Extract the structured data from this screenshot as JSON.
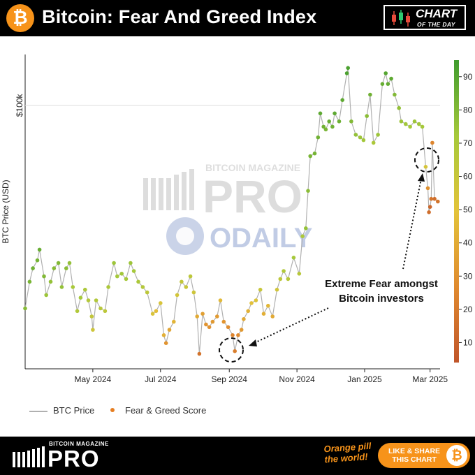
{
  "header": {
    "logo_glyph": "₿",
    "title": "Bitcoin: Fear And Greed Index",
    "badge_main": "CHART",
    "badge_sub": "OF THE DAY"
  },
  "chart_data": {
    "type": "scatter",
    "title": "Bitcoin: Fear And Greed Index",
    "ylabel": "BTC Price (USD)",
    "y_tick": "$100k",
    "xticks": [
      "May 2024",
      "Jul 2024",
      "Sep 2024",
      "Nov 2024",
      "Jan 2025",
      "Mar 2025"
    ],
    "colorbar_ticks": [
      10,
      20,
      30,
      40,
      50,
      60,
      70,
      80,
      90
    ],
    "colorbar_range": [
      4,
      95
    ],
    "colors": {
      "extreme_fear": "#c0552a",
      "fear": "#e08a2e",
      "neutral": "#e3c33a",
      "greed": "#a6c93a",
      "extreme_greed": "#3f9b2e",
      "price_line": "#b0b0b0"
    },
    "series": [
      {
        "name": "BTC Price",
        "type": "line"
      },
      {
        "name": "Fear & Greed Score",
        "type": "scatter"
      }
    ],
    "ylim_usd": [
      52000,
      109000
    ],
    "xlim": [
      "2024-03-01",
      "2025-03-10"
    ],
    "points": [
      {
        "date": "2024-03-01",
        "price": 62000,
        "score": 79
      },
      {
        "date": "2024-03-05",
        "price": 67000,
        "score": 82
      },
      {
        "date": "2024-03-08",
        "price": 69500,
        "score": 84
      },
      {
        "date": "2024-03-12",
        "price": 71000,
        "score": 83
      },
      {
        "date": "2024-03-14",
        "price": 73000,
        "score": 86
      },
      {
        "date": "2024-03-18",
        "price": 68000,
        "score": 80
      },
      {
        "date": "2024-03-20",
        "price": 64500,
        "score": 74
      },
      {
        "date": "2024-03-24",
        "price": 67000,
        "score": 76
      },
      {
        "date": "2024-03-27",
        "price": 69500,
        "score": 79
      },
      {
        "date": "2024-03-31",
        "price": 70500,
        "score": 80
      },
      {
        "date": "2024-04-03",
        "price": 66000,
        "score": 76
      },
      {
        "date": "2024-04-07",
        "price": 69500,
        "score": 78
      },
      {
        "date": "2024-04-10",
        "price": 70500,
        "score": 76
      },
      {
        "date": "2024-04-13",
        "price": 66000,
        "score": 71
      },
      {
        "date": "2024-04-17",
        "price": 61500,
        "score": 68
      },
      {
        "date": "2024-04-20",
        "price": 64000,
        "score": 72
      },
      {
        "date": "2024-04-24",
        "price": 65500,
        "score": 70
      },
      {
        "date": "2024-04-27",
        "price": 63500,
        "score": 67
      },
      {
        "date": "2024-04-30",
        "price": 60500,
        "score": 62
      },
      {
        "date": "2024-05-01",
        "price": 58000,
        "score": 58
      },
      {
        "date": "2024-05-04",
        "price": 63500,
        "score": 68
      },
      {
        "date": "2024-05-08",
        "price": 62000,
        "score": 66
      },
      {
        "date": "2024-05-12",
        "price": 61500,
        "score": 64
      },
      {
        "date": "2024-05-15",
        "price": 66000,
        "score": 70
      },
      {
        "date": "2024-05-20",
        "price": 70500,
        "score": 74
      },
      {
        "date": "2024-05-23",
        "price": 68000,
        "score": 72
      },
      {
        "date": "2024-05-27",
        "price": 68500,
        "score": 73
      },
      {
        "date": "2024-05-31",
        "price": 67500,
        "score": 72
      },
      {
        "date": "2024-06-04",
        "price": 70500,
        "score": 74
      },
      {
        "date": "2024-06-07",
        "price": 69000,
        "score": 72
      },
      {
        "date": "2024-06-11",
        "price": 67000,
        "score": 70
      },
      {
        "date": "2024-06-15",
        "price": 66000,
        "score": 67
      },
      {
        "date": "2024-06-19",
        "price": 65000,
        "score": 64
      },
      {
        "date": "2024-06-24",
        "price": 61000,
        "score": 54
      },
      {
        "date": "2024-06-27",
        "price": 61500,
        "score": 48
      },
      {
        "date": "2024-07-01",
        "price": 63000,
        "score": 54
      },
      {
        "date": "2024-07-04",
        "price": 57000,
        "score": 42
      },
      {
        "date": "2024-07-06",
        "price": 55500,
        "score": 31
      },
      {
        "date": "2024-07-09",
        "price": 58000,
        "score": 38
      },
      {
        "date": "2024-07-13",
        "price": 59500,
        "score": 44
      },
      {
        "date": "2024-07-16",
        "price": 64500,
        "score": 56
      },
      {
        "date": "2024-07-20",
        "price": 67000,
        "score": 62
      },
      {
        "date": "2024-07-24",
        "price": 66000,
        "score": 60
      },
      {
        "date": "2024-07-28",
        "price": 68000,
        "score": 64
      },
      {
        "date": "2024-07-31",
        "price": 65000,
        "score": 58
      },
      {
        "date": "2024-08-03",
        "price": 60500,
        "score": 40
      },
      {
        "date": "2024-08-05",
        "price": 53500,
        "score": 17
      },
      {
        "date": "2024-08-08",
        "price": 61000,
        "score": 36
      },
      {
        "date": "2024-08-11",
        "price": 59000,
        "score": 31
      },
      {
        "date": "2024-08-14",
        "price": 58500,
        "score": 30
      },
      {
        "date": "2024-08-17",
        "price": 59500,
        "score": 33
      },
      {
        "date": "2024-08-21",
        "price": 60500,
        "score": 34
      },
      {
        "date": "2024-08-24",
        "price": 63500,
        "score": 46
      },
      {
        "date": "2024-08-27",
        "price": 59500,
        "score": 31
      },
      {
        "date": "2024-08-31",
        "price": 58500,
        "score": 28
      },
      {
        "date": "2024-09-04",
        "price": 57000,
        "score": 24
      },
      {
        "date": "2024-09-06",
        "price": 54000,
        "score": 22
      },
      {
        "date": "2024-09-09",
        "price": 57000,
        "score": 27
      },
      {
        "date": "2024-09-12",
        "price": 58000,
        "score": 33
      },
      {
        "date": "2024-09-14",
        "price": 60000,
        "score": 40
      },
      {
        "date": "2024-09-18",
        "price": 61500,
        "score": 43
      },
      {
        "date": "2024-09-21",
        "price": 63000,
        "score": 49
      },
      {
        "date": "2024-09-25",
        "price": 63500,
        "score": 52
      },
      {
        "date": "2024-09-29",
        "price": 65500,
        "score": 60
      },
      {
        "date": "2024-10-02",
        "price": 61000,
        "score": 42
      },
      {
        "date": "2024-10-06",
        "price": 62500,
        "score": 45
      },
      {
        "date": "2024-10-10",
        "price": 60500,
        "score": 40
      },
      {
        "date": "2024-10-14",
        "price": 65500,
        "score": 57
      },
      {
        "date": "2024-10-17",
        "price": 67500,
        "score": 64
      },
      {
        "date": "2024-10-20",
        "price": 69000,
        "score": 68
      },
      {
        "date": "2024-10-24",
        "price": 67500,
        "score": 66
      },
      {
        "date": "2024-10-29",
        "price": 71500,
        "score": 72
      },
      {
        "date": "2024-11-03",
        "price": 68500,
        "score": 66
      },
      {
        "date": "2024-11-06",
        "price": 75500,
        "score": 70
      },
      {
        "date": "2024-11-09",
        "price": 77000,
        "score": 76
      },
      {
        "date": "2024-11-11",
        "price": 84000,
        "score": 78
      },
      {
        "date": "2024-11-13",
        "price": 90500,
        "score": 82
      },
      {
        "date": "2024-11-17",
        "price": 91000,
        "score": 83
      },
      {
        "date": "2024-11-20",
        "price": 94000,
        "score": 84
      },
      {
        "date": "2024-11-22",
        "price": 98500,
        "score": 88
      },
      {
        "date": "2024-11-25",
        "price": 96000,
        "score": 84
      },
      {
        "date": "2024-11-27",
        "price": 95500,
        "score": 82
      },
      {
        "date": "2024-11-30",
        "price": 97000,
        "score": 86
      },
      {
        "date": "2024-12-03",
        "price": 96000,
        "score": 84
      },
      {
        "date": "2024-12-05",
        "price": 98500,
        "score": 88
      },
      {
        "date": "2024-12-09",
        "price": 97000,
        "score": 85
      },
      {
        "date": "2024-12-12",
        "price": 101000,
        "score": 88
      },
      {
        "date": "2024-12-16",
        "price": 106000,
        "score": 92
      },
      {
        "date": "2024-12-17",
        "price": 107000,
        "score": 92
      },
      {
        "date": "2024-12-20",
        "price": 97000,
        "score": 80
      },
      {
        "date": "2024-12-24",
        "price": 94500,
        "score": 76
      },
      {
        "date": "2024-12-28",
        "price": 94000,
        "score": 74
      },
      {
        "date": "2024-12-31",
        "price": 93500,
        "score": 73
      },
      {
        "date": "2025-01-03",
        "price": 98000,
        "score": 78
      },
      {
        "date": "2025-01-06",
        "price": 102000,
        "score": 84
      },
      {
        "date": "2025-01-09",
        "price": 93000,
        "score": 70
      },
      {
        "date": "2025-01-13",
        "price": 94500,
        "score": 74
      },
      {
        "date": "2025-01-17",
        "price": 104000,
        "score": 86
      },
      {
        "date": "2025-01-20",
        "price": 106000,
        "score": 90
      },
      {
        "date": "2025-01-22",
        "price": 104000,
        "score": 87
      },
      {
        "date": "2025-01-25",
        "price": 105000,
        "score": 88
      },
      {
        "date": "2025-01-28",
        "price": 102000,
        "score": 80
      },
      {
        "date": "2025-02-01",
        "price": 99500,
        "score": 76
      },
      {
        "date": "2025-02-03",
        "price": 97000,
        "score": 74
      },
      {
        "date": "2025-02-07",
        "price": 96500,
        "score": 73
      },
      {
        "date": "2025-02-11",
        "price": 96000,
        "score": 72
      },
      {
        "date": "2025-02-15",
        "price": 97000,
        "score": 74
      },
      {
        "date": "2025-02-19",
        "price": 96500,
        "score": 73
      },
      {
        "date": "2025-02-22",
        "price": 96000,
        "score": 72
      },
      {
        "date": "2025-02-25",
        "price": 88500,
        "score": 55
      },
      {
        "date": "2025-02-27",
        "price": 84500,
        "score": 30
      },
      {
        "date": "2025-02-28",
        "price": 80000,
        "score": 15
      },
      {
        "date": "2025-03-01",
        "price": 81000,
        "score": 12
      },
      {
        "date": "2025-03-02",
        "price": 82500,
        "score": 18
      },
      {
        "date": "2025-03-03",
        "price": 93000,
        "score": 25
      },
      {
        "date": "2025-03-05",
        "price": 82500,
        "score": 15
      },
      {
        "date": "2025-03-08",
        "price": 82000,
        "score": 18
      }
    ],
    "annotation": {
      "text_line1": "Extreme Fear amongst",
      "text_line2": "Bitcoin investors"
    }
  },
  "watermarks": {
    "pro_top": "BITCOIN MAGAZINE",
    "pro_main": "PRO",
    "odaily": "ODAILY"
  },
  "legend": {
    "price_label": "BTC Price",
    "score_label": "Fear & Greed Score"
  },
  "footer": {
    "brand_top": "BITCOIN MAGAZINE",
    "brand_main": "PRO",
    "tagline_1": "Orange pill",
    "tagline_2": "the world!",
    "cta_1": "LIKE & SHARE",
    "cta_2": "THIS CHART",
    "coin_glyph": "₿"
  }
}
